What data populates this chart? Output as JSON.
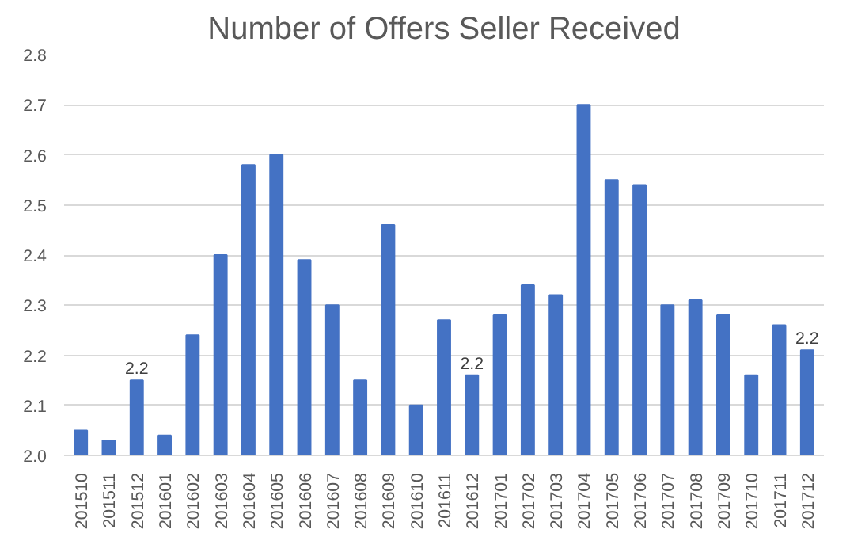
{
  "chart_data": {
    "type": "bar",
    "title": "Number of Offers Seller Received",
    "categories": [
      "201510",
      "201511",
      "201512",
      "201601",
      "201602",
      "201603",
      "201604",
      "201605",
      "201606",
      "201607",
      "201608",
      "201609",
      "201610",
      "201611",
      "201612",
      "201701",
      "201702",
      "201703",
      "201704",
      "201705",
      "201706",
      "201707",
      "201708",
      "201709",
      "201710",
      "201711",
      "201712"
    ],
    "values": [
      2.05,
      2.03,
      2.15,
      2.04,
      2.24,
      2.4,
      2.58,
      2.6,
      2.39,
      2.3,
      2.15,
      2.46,
      2.1,
      2.27,
      2.16,
      2.28,
      2.34,
      2.32,
      2.7,
      2.55,
      2.54,
      2.3,
      2.31,
      2.28,
      2.16,
      2.26,
      2.21
    ],
    "value_labels": [
      null,
      null,
      "2.2",
      null,
      null,
      null,
      null,
      null,
      null,
      null,
      null,
      null,
      null,
      null,
      "2.2",
      null,
      null,
      null,
      null,
      null,
      null,
      null,
      null,
      null,
      null,
      null,
      "2.2"
    ],
    "color": "#4472c4",
    "ylim": [
      2.0,
      2.8
    ],
    "yticks": [
      {
        "value": 2.0,
        "label": "2.0"
      },
      2.1,
      2.2,
      2.3,
      2.4,
      2.5,
      2.6,
      2.7,
      2.8
    ],
    "grid": "y"
  }
}
